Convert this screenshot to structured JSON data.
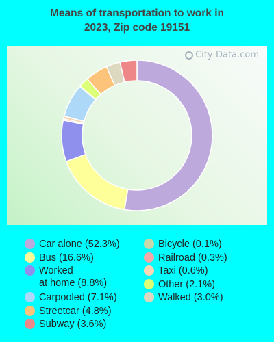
{
  "chart_data": {
    "type": "donut",
    "title_lines": [
      "Means of transportation to work in",
      "2023, Zip code 19151"
    ],
    "watermark": "City-Data.com",
    "slices": [
      {
        "label": "Car alone (52.3%)",
        "value": 52.3,
        "color": "#bda9dc"
      },
      {
        "label": "Bus (16.6%)",
        "value": 16.6,
        "color": "#ffff99"
      },
      {
        "label": "Worked\nat home (8.8%)",
        "value": 8.8,
        "color": "#8f90ee"
      },
      {
        "label": "Railroad (0.3%)",
        "value": 0.3,
        "color": "#f5a8a8"
      },
      {
        "label": "Taxi (0.6%)",
        "value": 0.6,
        "color": "#fbd7b5"
      },
      {
        "label": "Carpooled (7.1%)",
        "value": 7.1,
        "color": "#add8f8"
      },
      {
        "label": "Bicycle (0.1%)",
        "value": 0.1,
        "color": "#c8d8a8"
      },
      {
        "label": "Other (2.1%)",
        "value": 2.1,
        "color": "#ddff77"
      },
      {
        "label": "Streetcar (4.8%)",
        "value": 4.8,
        "color": "#fbc47a"
      },
      {
        "label": "Walked (3.0%)",
        "value": 3.0,
        "color": "#ddd8c0"
      },
      {
        "label": "Subway (3.6%)",
        "value": 3.6,
        "color": "#ee8888"
      }
    ],
    "legend_columns": [
      [
        "Car alone (52.3%)",
        "Bus (16.6%)",
        "Worked\nat home (8.8%)",
        "Carpooled (7.1%)",
        "Streetcar (4.8%)",
        "Subway (3.6%)"
      ],
      [
        "Bicycle (0.1%)",
        "Railroad (0.3%)",
        "Taxi (0.6%)",
        "Other (2.1%)",
        "Walked (3.0%)"
      ]
    ]
  }
}
